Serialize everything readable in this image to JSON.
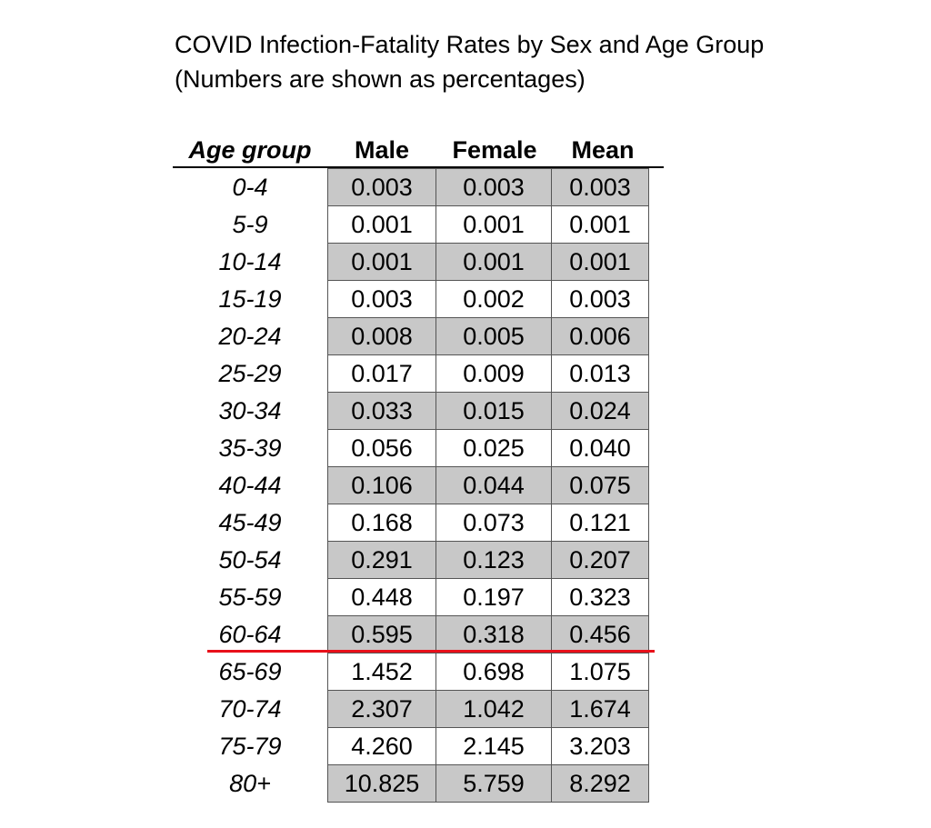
{
  "title_line1": "COVID Infection-Fatality Rates by Sex and Age Group",
  "title_line2": "(Numbers are shown as percentages)",
  "colors": {
    "shaded_row": "#c8c8c8",
    "divider_line": "#e8101a"
  },
  "chart_data": {
    "type": "table",
    "columns": [
      "Age group",
      "Male",
      "Female",
      "Mean"
    ],
    "rows": [
      {
        "age": "0-4",
        "male": "0.003",
        "female": "0.003",
        "mean": "0.003"
      },
      {
        "age": "5-9",
        "male": "0.001",
        "female": "0.001",
        "mean": "0.001"
      },
      {
        "age": "10-14",
        "male": "0.001",
        "female": "0.001",
        "mean": "0.001"
      },
      {
        "age": "15-19",
        "male": "0.003",
        "female": "0.002",
        "mean": "0.003"
      },
      {
        "age": "20-24",
        "male": "0.008",
        "female": "0.005",
        "mean": "0.006"
      },
      {
        "age": "25-29",
        "male": "0.017",
        "female": "0.009",
        "mean": "0.013"
      },
      {
        "age": "30-34",
        "male": "0.033",
        "female": "0.015",
        "mean": "0.024"
      },
      {
        "age": "35-39",
        "male": "0.056",
        "female": "0.025",
        "mean": "0.040"
      },
      {
        "age": "40-44",
        "male": "0.106",
        "female": "0.044",
        "mean": "0.075"
      },
      {
        "age": "45-49",
        "male": "0.168",
        "female": "0.073",
        "mean": "0.121"
      },
      {
        "age": "50-54",
        "male": "0.291",
        "female": "0.123",
        "mean": "0.207"
      },
      {
        "age": "55-59",
        "male": "0.448",
        "female": "0.197",
        "mean": "0.323"
      },
      {
        "age": "60-64",
        "male": "0.595",
        "female": "0.318",
        "mean": "0.456"
      },
      {
        "age": "65-69",
        "male": "1.452",
        "female": "0.698",
        "mean": "1.075"
      },
      {
        "age": "70-74",
        "male": "2.307",
        "female": "1.042",
        "mean": "1.674"
      },
      {
        "age": "75-79",
        "male": "4.260",
        "female": "2.145",
        "mean": "3.203"
      },
      {
        "age": "80+",
        "male": "10.825",
        "female": "5.759",
        "mean": "8.292"
      }
    ],
    "shading": "alternating rows, first row shaded",
    "divider_after_row": "60-64"
  }
}
